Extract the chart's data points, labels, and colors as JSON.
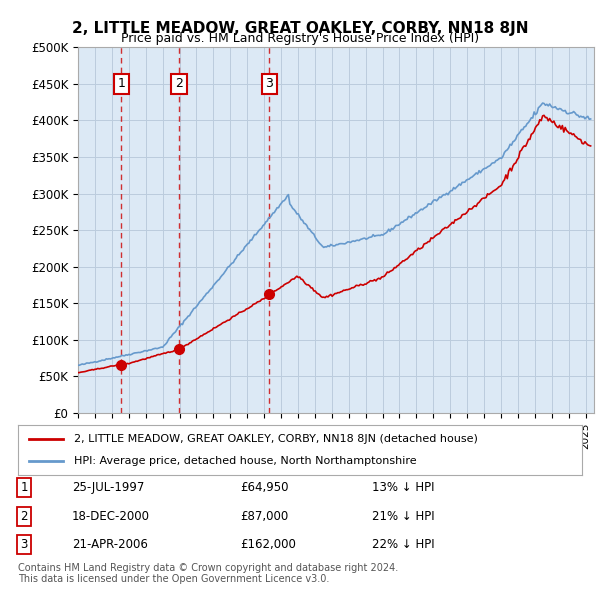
{
  "title": "2, LITTLE MEADOW, GREAT OAKLEY, CORBY, NN18 8JN",
  "subtitle": "Price paid vs. HM Land Registry's House Price Index (HPI)",
  "background_color": "#dce9f5",
  "plot_bg_color": "#dce9f5",
  "ylabel_ticks": [
    "£0",
    "£50K",
    "£100K",
    "£150K",
    "£200K",
    "£250K",
    "£300K",
    "£350K",
    "£400K",
    "£450K",
    "£500K"
  ],
  "ytick_values": [
    0,
    50000,
    100000,
    150000,
    200000,
    250000,
    300000,
    350000,
    400000,
    450000,
    500000
  ],
  "ylim": [
    0,
    500000
  ],
  "xlim_start": 1995.0,
  "xlim_end": 2025.5,
  "sale_points": [
    {
      "year": 1997.56,
      "price": 64950,
      "label": "1"
    },
    {
      "year": 2000.96,
      "price": 87000,
      "label": "2"
    },
    {
      "year": 2006.31,
      "price": 162000,
      "label": "3"
    }
  ],
  "legend_line1": "2, LITTLE MEADOW, GREAT OAKLEY, CORBY, NN18 8JN (detached house)",
  "legend_line2": "HPI: Average price, detached house, North Northamptonshire",
  "table_rows": [
    {
      "num": "1",
      "date": "25-JUL-1997",
      "price": "£64,950",
      "pct": "13% ↓ HPI"
    },
    {
      "num": "2",
      "date": "18-DEC-2000",
      "price": "£87,000",
      "pct": "21% ↓ HPI"
    },
    {
      "num": "3",
      "date": "21-APR-2006",
      "price": "£162,000",
      "pct": "22% ↓ HPI"
    }
  ],
  "footnote1": "Contains HM Land Registry data © Crown copyright and database right 2024.",
  "footnote2": "This data is licensed under the Open Government Licence v3.0.",
  "red_color": "#cc0000",
  "blue_color": "#6699cc",
  "grid_color": "#bbccdd"
}
